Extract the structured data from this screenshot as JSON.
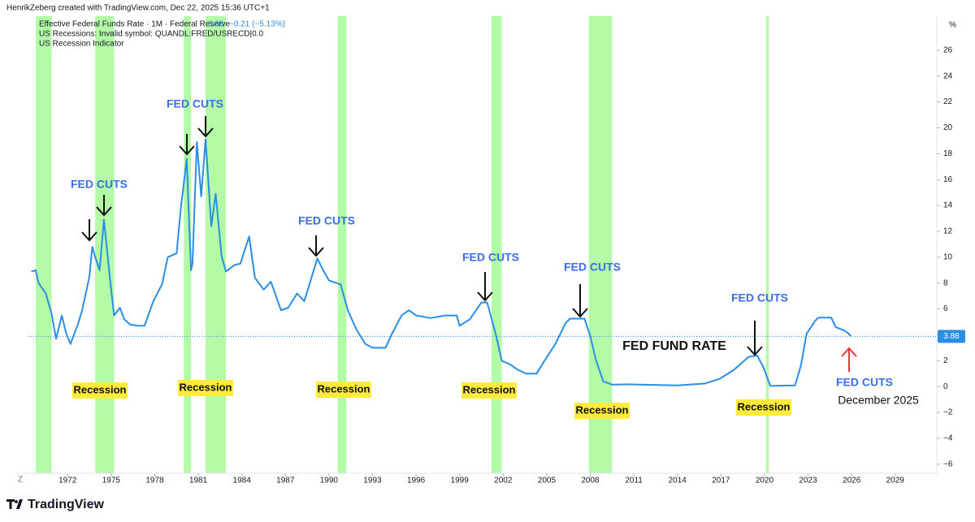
{
  "chart_data": {
    "type": "line",
    "header": "HenrikZeberg created with TradingView.com, Dec 22, 2025 15:36 UTC+1",
    "change": "−0.21 (−5.13%)",
    "indicators": [
      "US Recessions: Invalid symbol: QUANDL:FRED/USRECD|0.0",
      "US Recession Indicator"
    ],
    "y_unit": "%",
    "x_corner": "Z",
    "footer": "TradingView",
    "x": [
      1969.5,
      1969.8,
      1970.0,
      1970.5,
      1970.9,
      1971.2,
      1971.6,
      1971.9,
      1972.2,
      1972.7,
      1973.0,
      1973.5,
      1973.7,
      1973.9,
      1974.2,
      1974.5,
      1974.9,
      1975.2,
      1975.6,
      1975.9,
      1976.3,
      1976.9,
      1977.3,
      1977.9,
      1978.5,
      1978.9,
      1979.5,
      1979.8,
      1980.2,
      1980.5,
      1980.6,
      1980.9,
      1981.2,
      1981.5,
      1981.9,
      1982.2,
      1982.6,
      1982.9,
      1983.5,
      1983.9,
      1984.5,
      1984.9,
      1985.5,
      1986.0,
      1986.7,
      1987.2,
      1987.8,
      1988.3,
      1988.9,
      1989.2,
      1989.6,
      1990.0,
      1990.8,
      1991.3,
      1991.9,
      1992.5,
      1993.0,
      1993.9,
      1994.3,
      1995.0,
      1995.5,
      1996.0,
      1997.0,
      1998.0,
      1998.8,
      1999.0,
      1999.7,
      2000.5,
      2000.9,
      2001.5,
      2001.9,
      2002.5,
      2003.0,
      2003.6,
      2004.3,
      2004.9,
      2005.6,
      2006.3,
      2006.6,
      2007.6,
      2008.0,
      2008.4,
      2008.9,
      2009.5,
      2010.5,
      2012.0,
      2014.0,
      2015.9,
      2016.9,
      2017.9,
      2018.9,
      2019.5,
      2019.9,
      2020.2,
      2020.4,
      2021.5,
      2022.1,
      2022.5,
      2022.9,
      2023.5,
      2023.7,
      2024.6,
      2024.9,
      2025.5,
      2025.8,
      2025.95
    ],
    "series": [
      {
        "name": "Effective Federal Funds Rate · 1M · Federal Reserve",
        "color": "#2a8ee6",
        "values": [
          8.9,
          9.0,
          8.0,
          7.2,
          5.6,
          3.7,
          5.5,
          4.1,
          3.3,
          4.8,
          5.9,
          8.5,
          10.8,
          10.0,
          9.0,
          12.9,
          8.5,
          5.5,
          6.1,
          5.2,
          4.8,
          4.7,
          4.7,
          6.6,
          7.9,
          10.0,
          10.3,
          13.8,
          17.6,
          9.0,
          9.5,
          18.9,
          14.7,
          19.1,
          12.4,
          14.9,
          10.1,
          8.9,
          9.4,
          9.5,
          11.6,
          8.4,
          7.5,
          8.1,
          5.9,
          6.1,
          7.2,
          6.6,
          8.8,
          9.9,
          9.0,
          8.2,
          7.9,
          5.9,
          4.4,
          3.3,
          3.0,
          3.0,
          4.0,
          5.5,
          5.9,
          5.5,
          5.3,
          5.5,
          5.5,
          4.7,
          5.2,
          6.5,
          6.5,
          4.0,
          2.0,
          1.7,
          1.3,
          1.0,
          1.0,
          2.1,
          3.3,
          4.9,
          5.25,
          5.25,
          3.9,
          2.0,
          0.4,
          0.15,
          0.18,
          0.14,
          0.09,
          0.24,
          0.6,
          1.3,
          2.3,
          2.4,
          1.55,
          0.65,
          0.05,
          0.08,
          0.08,
          1.6,
          4.1,
          5.1,
          5.33,
          5.33,
          4.6,
          4.33,
          4.1,
          3.88
        ]
      }
    ],
    "recession_color": "#b4fba8",
    "recession_periods": [
      {
        "start": 1969.8,
        "end": 1970.9
      },
      {
        "start": 1973.9,
        "end": 1975.2
      },
      {
        "start": 1980.0,
        "end": 1980.5
      },
      {
        "start": 1981.5,
        "end": 1982.9
      },
      {
        "start": 1990.6,
        "end": 1991.2
      },
      {
        "start": 2001.2,
        "end": 2001.9
      },
      {
        "start": 2007.9,
        "end": 2009.5
      },
      {
        "start": 2020.1,
        "end": 2020.3
      }
    ],
    "xlim": [
      1969.3,
      2031.7
    ],
    "ylim": [
      -6.7,
      28.5
    ],
    "xticks": [
      1972,
      1975,
      1978,
      1981,
      1984,
      1987,
      1990,
      1993,
      1996,
      1999,
      2002,
      2005,
      2008,
      2011,
      2014,
      2017,
      2020,
      2023,
      2026,
      2029
    ],
    "yticks": [
      {
        "value": -6,
        "label": "−6"
      },
      {
        "value": -4,
        "label": "−4"
      },
      {
        "value": -2,
        "label": "−2"
      },
      0,
      2,
      4,
      6,
      8,
      10,
      12,
      14,
      16,
      18,
      20,
      22,
      24,
      26
    ],
    "annotations": {
      "fed_cuts": [
        "FED CUTS",
        "FED CUTS",
        "FED CUTS",
        "FED CUTS",
        "FED CUTS",
        "FED CUTS",
        "FED CUTS"
      ],
      "recessions": [
        "Recession",
        "Recession",
        "Recession",
        "Recession",
        "Recession",
        "Recession"
      ],
      "rate_label": "FED FUND RATE",
      "date_note": "December 2025"
    }
  }
}
